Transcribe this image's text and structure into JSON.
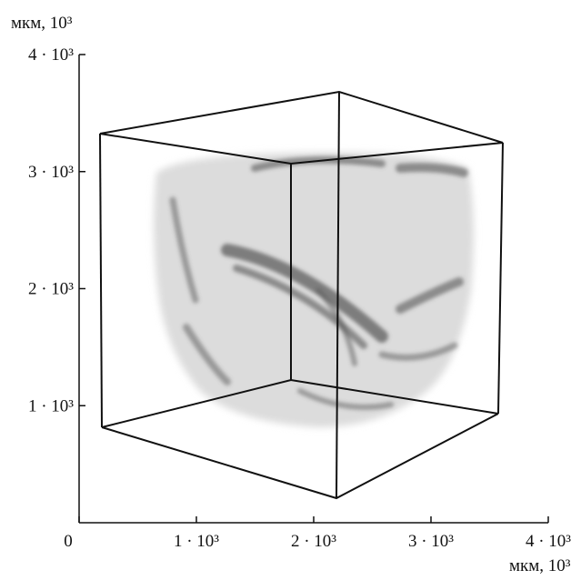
{
  "chart_data": {
    "type": "volume",
    "x_label": "мкм, 10³",
    "y_label": "мкм, 10³",
    "xlim": [
      0,
      4000
    ],
    "ylim": [
      0,
      4000
    ],
    "xticks": [
      0,
      {
        "value": 1000,
        "label": "1 · 10³"
      },
      {
        "value": 2000,
        "label": "2 · 10³"
      },
      {
        "value": 3000,
        "label": "3 · 10³"
      },
      {
        "value": 4000,
        "label": "4 · 10³"
      }
    ],
    "yticks": [
      {
        "value": 1000,
        "label": "1 · 10³"
      },
      {
        "value": 2000,
        "label": "2 · 10³"
      },
      {
        "value": 3000,
        "label": "3 · 10³"
      },
      {
        "value": 4000,
        "label": "4 · 10³"
      }
    ]
  }
}
